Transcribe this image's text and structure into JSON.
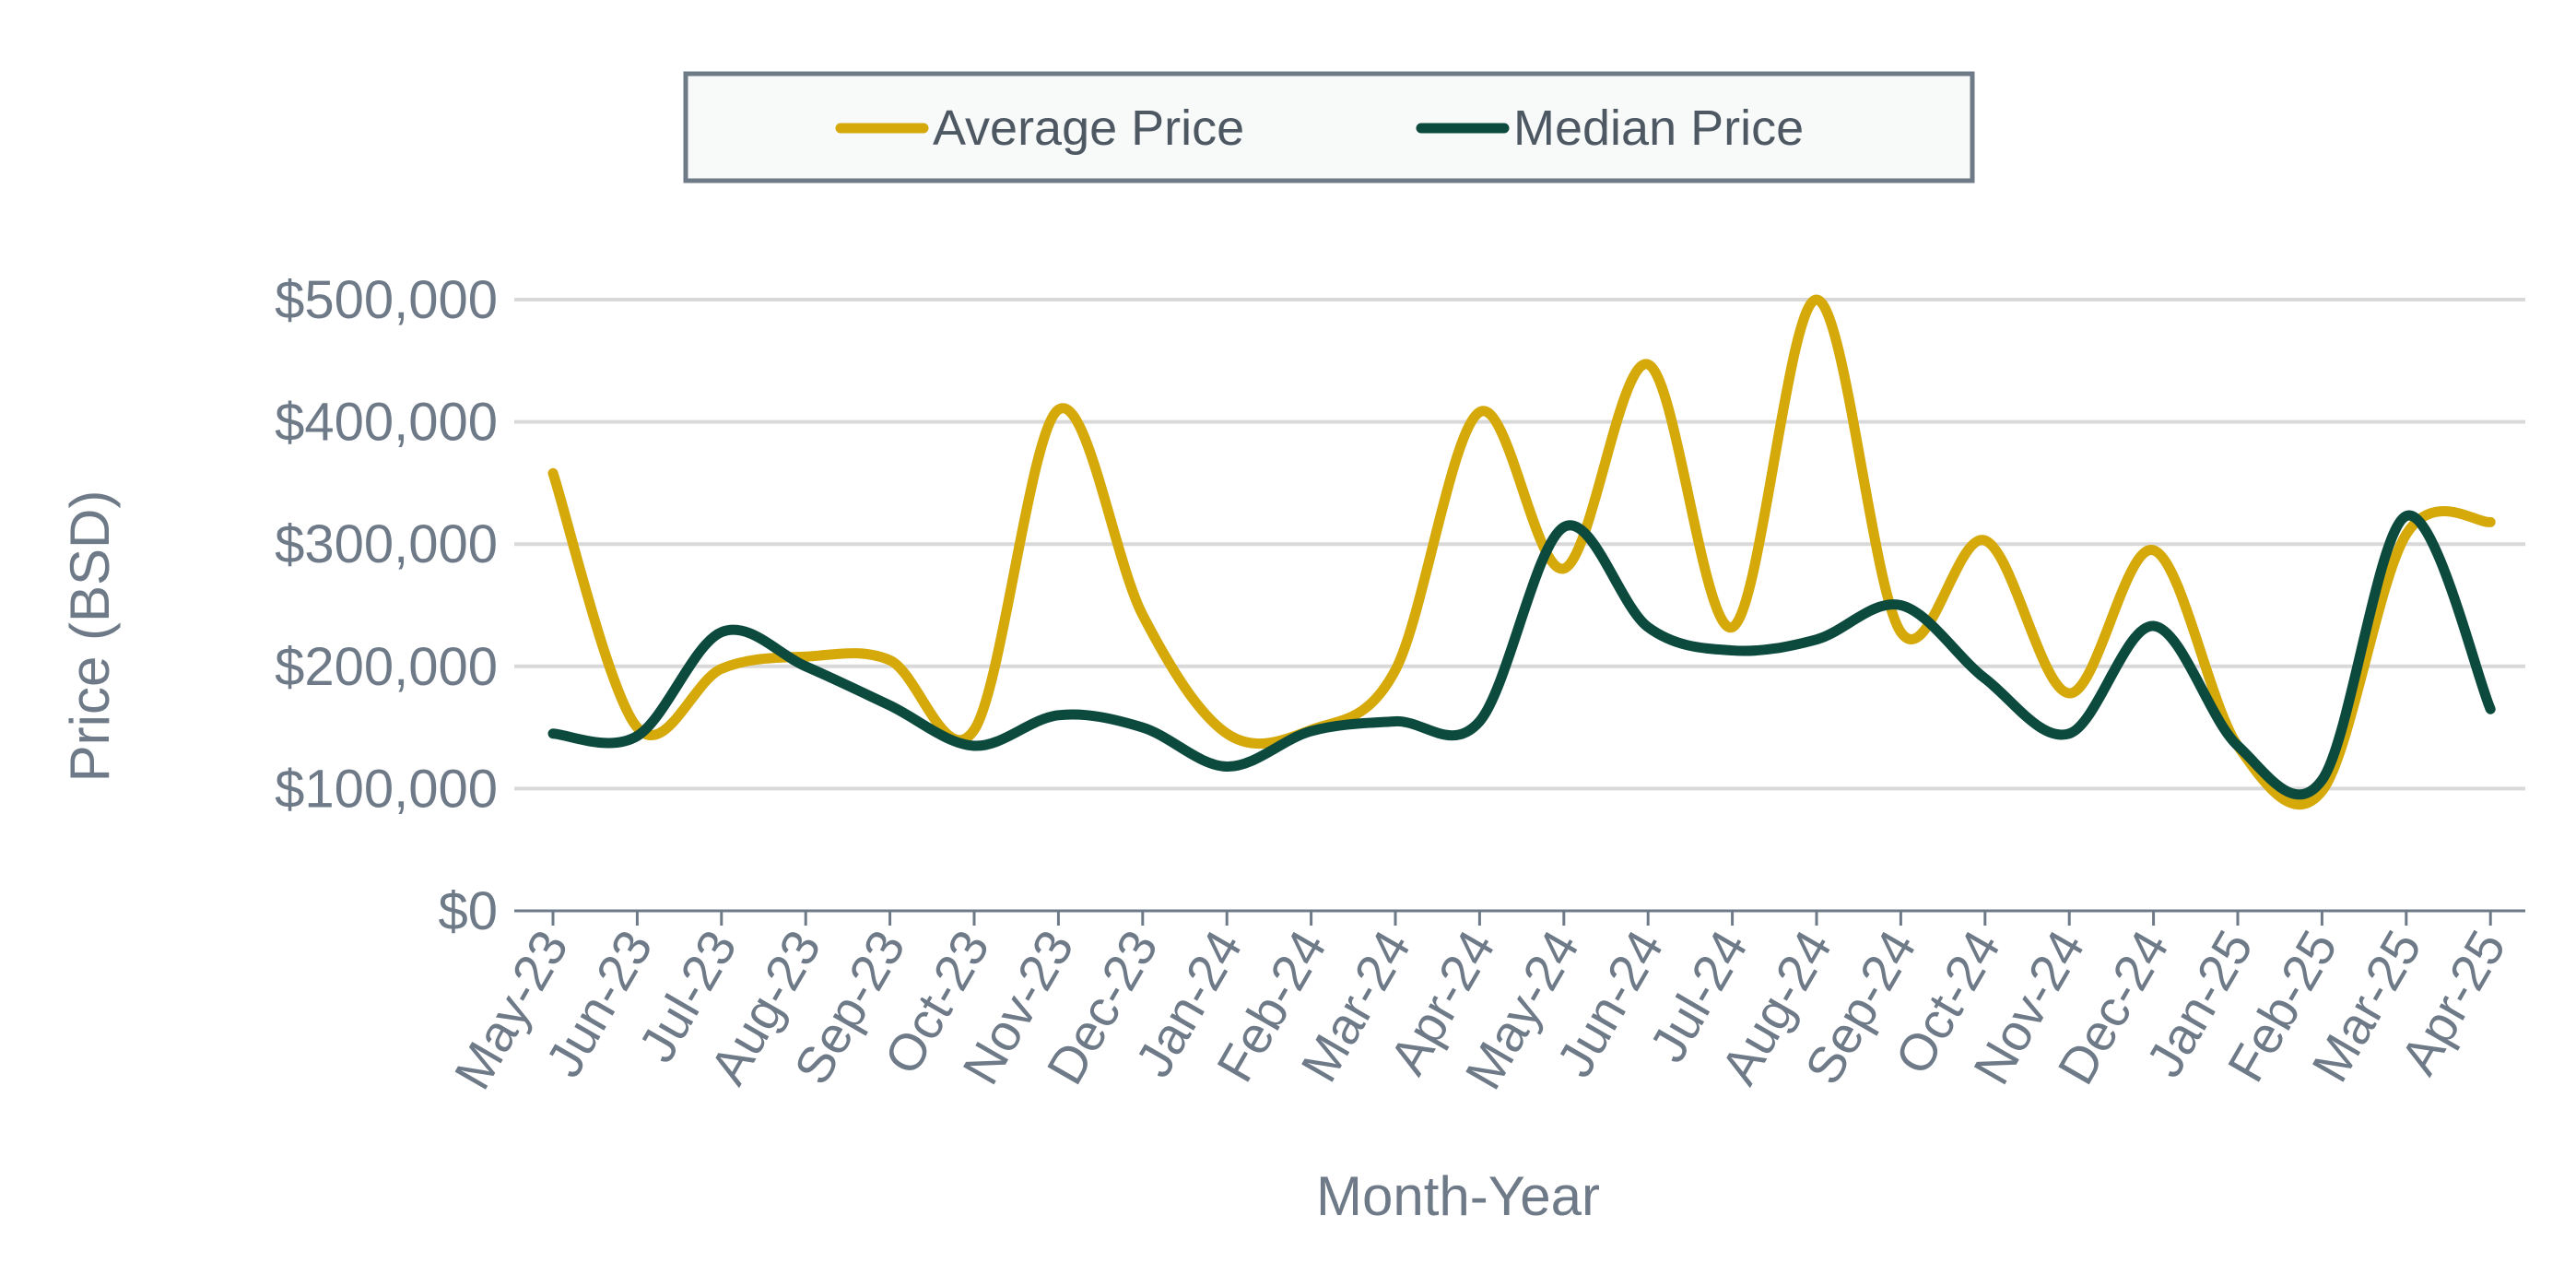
{
  "chart_data": {
    "type": "line",
    "title": "",
    "xlabel": "Month-Year",
    "ylabel": "Price (BSD)",
    "ylim": [
      0,
      500000
    ],
    "yticks": [
      0,
      100000,
      200000,
      300000,
      400000,
      500000
    ],
    "ytick_labels": [
      "$0",
      "$100,000",
      "$200,000",
      "$300,000",
      "$400,000",
      "$500,000"
    ],
    "grid": true,
    "legend_position": "top-center",
    "categories": [
      "May-23",
      "Jun-23",
      "Jul-23",
      "Aug-23",
      "Sep-23",
      "Oct-23",
      "Nov-23",
      "Dec-23",
      "Jan-24",
      "Feb-24",
      "Mar-24",
      "Apr-24",
      "May-24",
      "Jun-24",
      "Jul-24",
      "Aug-24",
      "Sep-24",
      "Oct-24",
      "Nov-24",
      "Dec-24",
      "Jan-25",
      "Feb-25",
      "Mar-25",
      "Apr-25"
    ],
    "series": [
      {
        "name": "Average Price",
        "color": "#d6a90a",
        "values": [
          358000,
          150000,
          198000,
          208000,
          205000,
          148000,
          410000,
          242000,
          145000,
          148000,
          197000,
          408000,
          280000,
          447000,
          232000,
          500000,
          228000,
          303000,
          178000,
          295000,
          135000,
          98000,
          308000,
          318000
        ]
      },
      {
        "name": "Median Price",
        "color": "#0c4a3e",
        "values": [
          145000,
          143000,
          228000,
          200000,
          168000,
          135000,
          160000,
          150000,
          118000,
          147000,
          155000,
          155000,
          314000,
          232000,
          213000,
          222000,
          250000,
          190000,
          145000,
          233000,
          135000,
          107000,
          323000,
          165000
        ]
      }
    ]
  },
  "legend": {
    "items": [
      "Average Price",
      "Median Price"
    ]
  }
}
